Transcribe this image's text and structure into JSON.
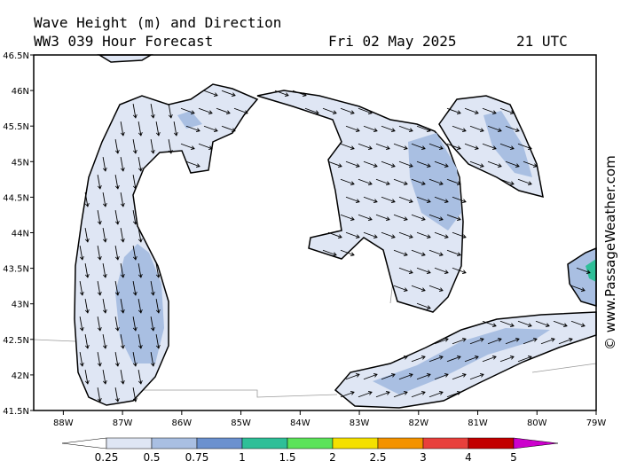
{
  "map": {
    "title": "Wave Height (m) and Direction",
    "subtitle": "WW3 039 Hour Forecast",
    "date": "Fri 02 May 2025",
    "time": "21 UTC",
    "credit": "© www.PassageWeather.com",
    "xlim": [
      -88.5,
      -79
    ],
    "ylim": [
      41.5,
      46.5
    ],
    "xticks": [
      {
        "value": -88,
        "label": "88W"
      },
      {
        "value": -87,
        "label": "87W"
      },
      {
        "value": -86,
        "label": "86W"
      },
      {
        "value": -85,
        "label": "85W"
      },
      {
        "value": -84,
        "label": "84W"
      },
      {
        "value": -83,
        "label": "83W"
      },
      {
        "value": -82,
        "label": "82W"
      },
      {
        "value": -81,
        "label": "81W"
      },
      {
        "value": -80,
        "label": "80W"
      },
      {
        "value": -79,
        "label": "79W"
      }
    ],
    "yticks": [
      {
        "value": 41.5,
        "label": "41.5N"
      },
      {
        "value": 42,
        "label": "42N"
      },
      {
        "value": 42.5,
        "label": "42.5N"
      },
      {
        "value": 43,
        "label": "43N"
      },
      {
        "value": 43.5,
        "label": "43.5N"
      },
      {
        "value": 44,
        "label": "44N"
      },
      {
        "value": 44.5,
        "label": "44.5N"
      },
      {
        "value": 45,
        "label": "45N"
      },
      {
        "value": 45.5,
        "label": "45.5N"
      },
      {
        "value": 46,
        "label": "46N"
      },
      {
        "value": 46.5,
        "label": "46.5N"
      }
    ],
    "colorbar": {
      "levels": [
        0.25,
        0.5,
        0.75,
        1,
        1.5,
        2,
        2.5,
        3,
        4,
        5
      ],
      "colors": [
        "#ffffff",
        "#dfe6f4",
        "#a9bfe2",
        "#6b91cf",
        "#2fbf98",
        "#5ce35a",
        "#f4e000",
        "#f39200",
        "#e8403c",
        "#c20000",
        "#cc00cc"
      ]
    }
  }
}
